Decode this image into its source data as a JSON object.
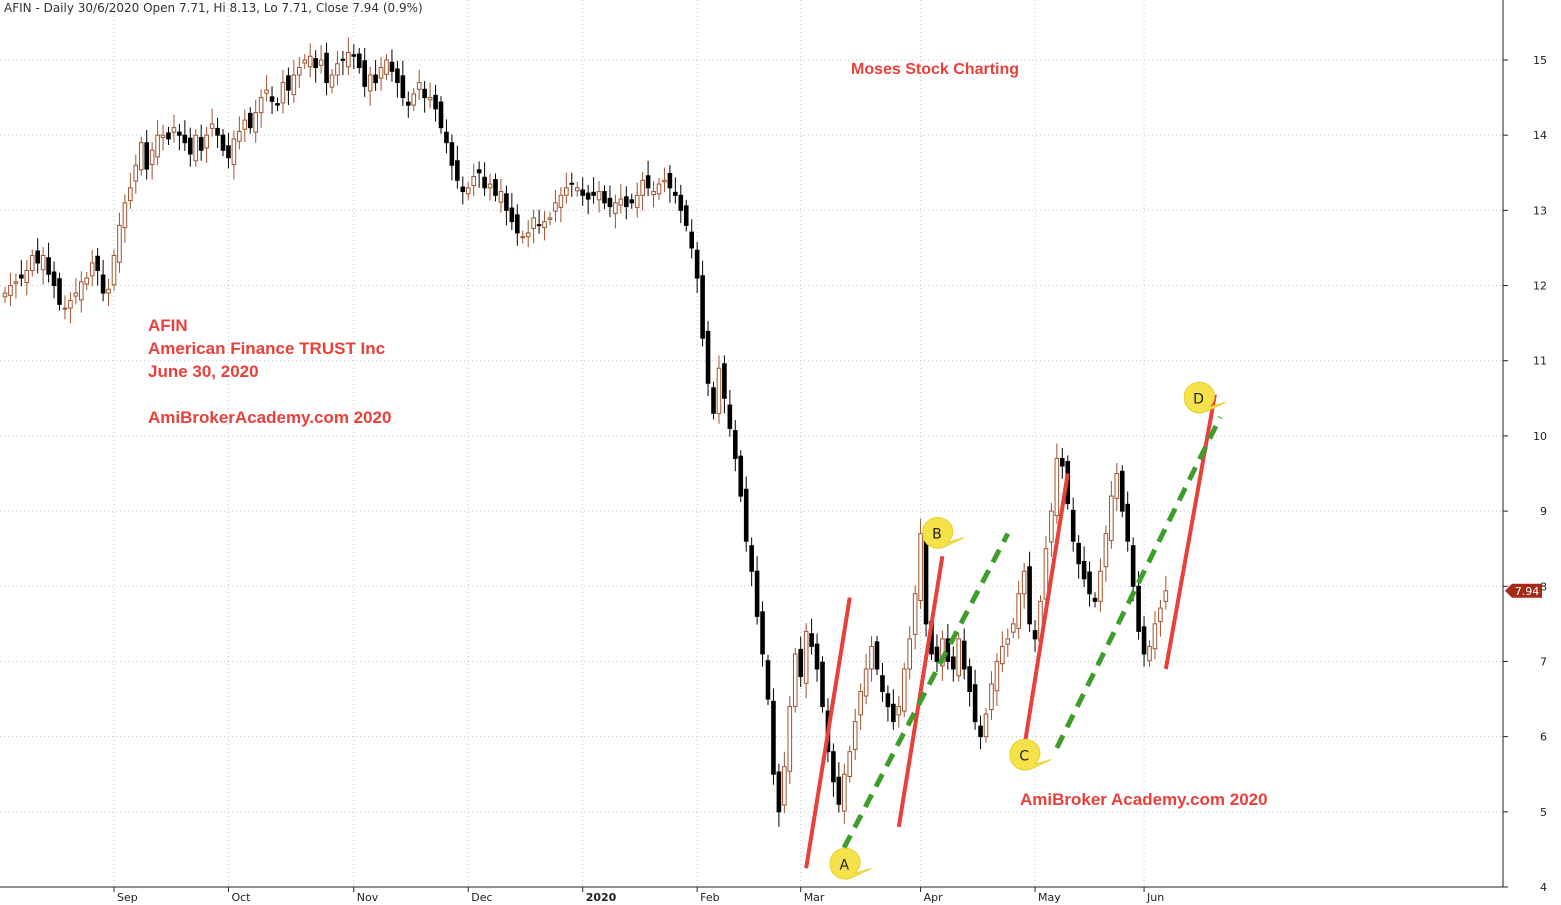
{
  "header": {
    "text": "AFIN - Daily 30/6/2020 Open 7.71, Hi 8.13, Lo 7.71, Close 7.94 (0.9%)"
  },
  "annotations": {
    "title": "Moses Stock Charting",
    "ticker": "AFIN",
    "company": "American Finance TRUST Inc",
    "date": "June 30, 2020",
    "site": "AmiBrokerAcademy.com 2020",
    "site2": "AmiBroker Academy.com  2020"
  },
  "chart_data": {
    "type": "candlestick",
    "ylim": [
      4,
      15.6
    ],
    "yticks": [
      4,
      5,
      6,
      7,
      8,
      9,
      10,
      11,
      12,
      13,
      14,
      15
    ],
    "x_axis_labels": [
      {
        "label": "Sep",
        "day": 20
      },
      {
        "label": "Oct",
        "day": 41
      },
      {
        "label": "Nov",
        "day": 64
      },
      {
        "label": "Dec",
        "day": 85
      },
      {
        "label": "2020",
        "day": 106,
        "bold": true
      },
      {
        "label": "Feb",
        "day": 127
      },
      {
        "label": "Mar",
        "day": 146
      },
      {
        "label": "Apr",
        "day": 168
      },
      {
        "label": "May",
        "day": 189
      },
      {
        "label": "Jun",
        "day": 209
      }
    ],
    "last_price": {
      "value": 7.94,
      "label": "7.94"
    },
    "colors": {
      "up": "#a0522d",
      "down": "#000000",
      "trend_red": "#e8403a",
      "trend_green": "#3f9d2c",
      "callout": "#f5e14a"
    },
    "closes": [
      11.9,
      12.0,
      12.05,
      12.1,
      12.2,
      12.4,
      12.3,
      12.4,
      12.15,
      12.0,
      11.75,
      11.7,
      11.8,
      11.9,
      12.05,
      12.1,
      12.3,
      12.2,
      11.9,
      11.95,
      12.4,
      12.8,
      13.1,
      13.3,
      13.6,
      13.9,
      13.55,
      13.8,
      14.0,
      14.0,
      13.95,
      14.1,
      14.0,
      13.9,
      13.75,
      14.0,
      13.8,
      14.0,
      14.15,
      14.0,
      13.8,
      13.7,
      13.95,
      14.05,
      14.2,
      14.1,
      14.3,
      14.5,
      14.6,
      14.45,
      14.4,
      14.7,
      14.6,
      14.8,
      14.9,
      15.0,
      15.05,
      14.9,
      15.0,
      14.7,
      14.8,
      14.95,
      15.0,
      15.1,
      15.05,
      14.9,
      14.65,
      14.8,
      14.7,
      14.9,
      15.0,
      14.85,
      14.7,
      14.5,
      14.4,
      14.55,
      14.7,
      14.5,
      14.5,
      14.35,
      14.1,
      13.9,
      13.6,
      13.4,
      13.25,
      13.3,
      13.45,
      13.5,
      13.3,
      13.35,
      13.2,
      13.25,
      13.0,
      12.85,
      12.7,
      12.65,
      12.7,
      12.9,
      12.8,
      12.85,
      12.9,
      13.1,
      13.2,
      13.3,
      13.35,
      13.3,
      13.2,
      13.15,
      13.2,
      13.25,
      13.1,
      13.05,
      13.1,
      13.15,
      13.05,
      13.1,
      13.2,
      13.4,
      13.3,
      13.25,
      13.35,
      13.4,
      13.3,
      13.2,
      13.0,
      12.8,
      12.5,
      12.1,
      11.3,
      10.7,
      10.3,
      10.9,
      10.5,
      10.1,
      9.7,
      9.2,
      8.6,
      8.2,
      7.6,
      7.1,
      6.5,
      5.5,
      5.0,
      5.6,
      6.4,
      7.1,
      6.8,
      7.4,
      7.2,
      6.9,
      6.4,
      5.8,
      5.4,
      5.1,
      5.5,
      5.8,
      6.2,
      6.6,
      6.9,
      7.2,
      6.9,
      6.6,
      6.4,
      6.2,
      6.4,
      6.9,
      7.3,
      7.9,
      8.7,
      7.5,
      7.1,
      7.0,
      7.3,
      7.0,
      6.9,
      7.3,
      6.9,
      6.6,
      6.2,
      6.0,
      6.3,
      6.7,
      7.0,
      7.2,
      7.3,
      7.5,
      7.9,
      8.2,
      7.5,
      7.3,
      7.8,
      8.5,
      9.0,
      9.7,
      9.6,
      9.1,
      8.6,
      8.3,
      8.1,
      7.9,
      7.8,
      8.2,
      8.7,
      9.2,
      9.5,
      9.0,
      8.6,
      8.0,
      7.4,
      7.1,
      7.2,
      7.5,
      7.71,
      7.94
    ]
  },
  "markers": [
    {
      "label": "A",
      "day": 154,
      "value": 4.3
    },
    {
      "label": "B",
      "day": 171,
      "value": 8.7
    },
    {
      "label": "C",
      "day": 187,
      "value": 5.75
    },
    {
      "label": "D",
      "day": 219,
      "value": 10.5
    }
  ],
  "trendlines": {
    "red": [
      {
        "from": [
          147,
          4.25
        ],
        "to": [
          155,
          7.85
        ]
      },
      {
        "from": [
          164,
          4.8
        ],
        "to": [
          172,
          8.4
        ]
      },
      {
        "from": [
          187,
          5.85
        ],
        "to": [
          195,
          9.5
        ]
      },
      {
        "from": [
          213,
          6.9
        ],
        "to": [
          222,
          10.55
        ]
      }
    ],
    "green": [
      {
        "from": [
          152,
          4.25
        ],
        "to": [
          184,
          8.7
        ]
      },
      {
        "from": [
          193,
          5.85
        ],
        "to": [
          223,
          10.25
        ]
      }
    ]
  }
}
